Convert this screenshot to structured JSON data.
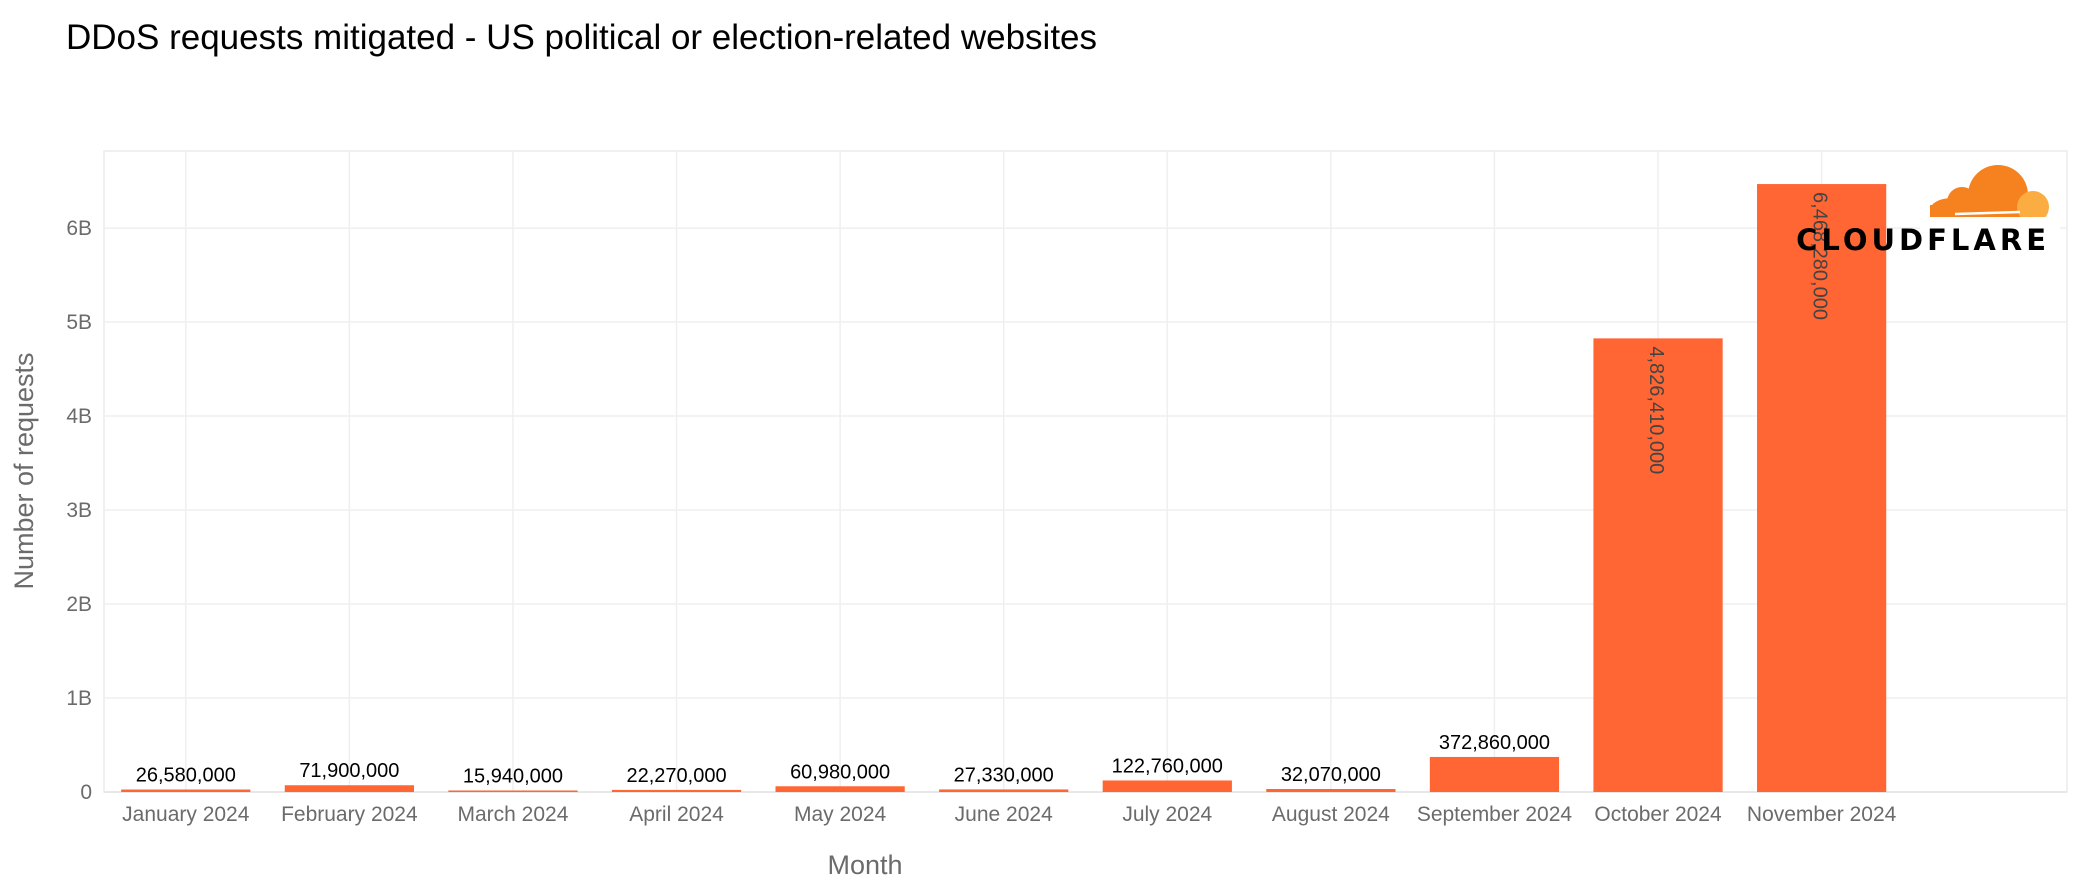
{
  "chart_data": {
    "type": "bar",
    "title": "DDoS requests mitigated - US political or election-related websites",
    "xlabel": "Month",
    "ylabel": "Number of requests",
    "categories": [
      "January 2024",
      "February 2024",
      "March 2024",
      "April 2024",
      "May 2024",
      "June 2024",
      "July 2024",
      "August 2024",
      "September 2024",
      "October 2024",
      "November 2024"
    ],
    "values": [
      26580000,
      71900000,
      15940000,
      22270000,
      60980000,
      27330000,
      122760000,
      32070000,
      372860000,
      4826410000,
      6468280000
    ],
    "data_labels": [
      "26,580,000",
      "71,900,000",
      "15,940,000",
      "22,270,000",
      "60,980,000",
      "27,330,000",
      "122,760,000",
      "32,070,000",
      "372,860,000",
      "4,826,410,000",
      "6,468,280,000"
    ],
    "ylim": [
      0,
      6820000000
    ],
    "yticks": [
      0,
      1000000000,
      2000000000,
      3000000000,
      4000000000,
      5000000000,
      6000000000
    ],
    "ytick_labels": [
      "0",
      "1B",
      "2B",
      "3B",
      "4B",
      "5B",
      "6B"
    ],
    "grid": true,
    "bar_color": "#ff6633",
    "legend": "none"
  },
  "logo": {
    "text": "CLOUDFLARE",
    "color_primary": "#f6821f",
    "color_secondary": "#fbad41"
  }
}
